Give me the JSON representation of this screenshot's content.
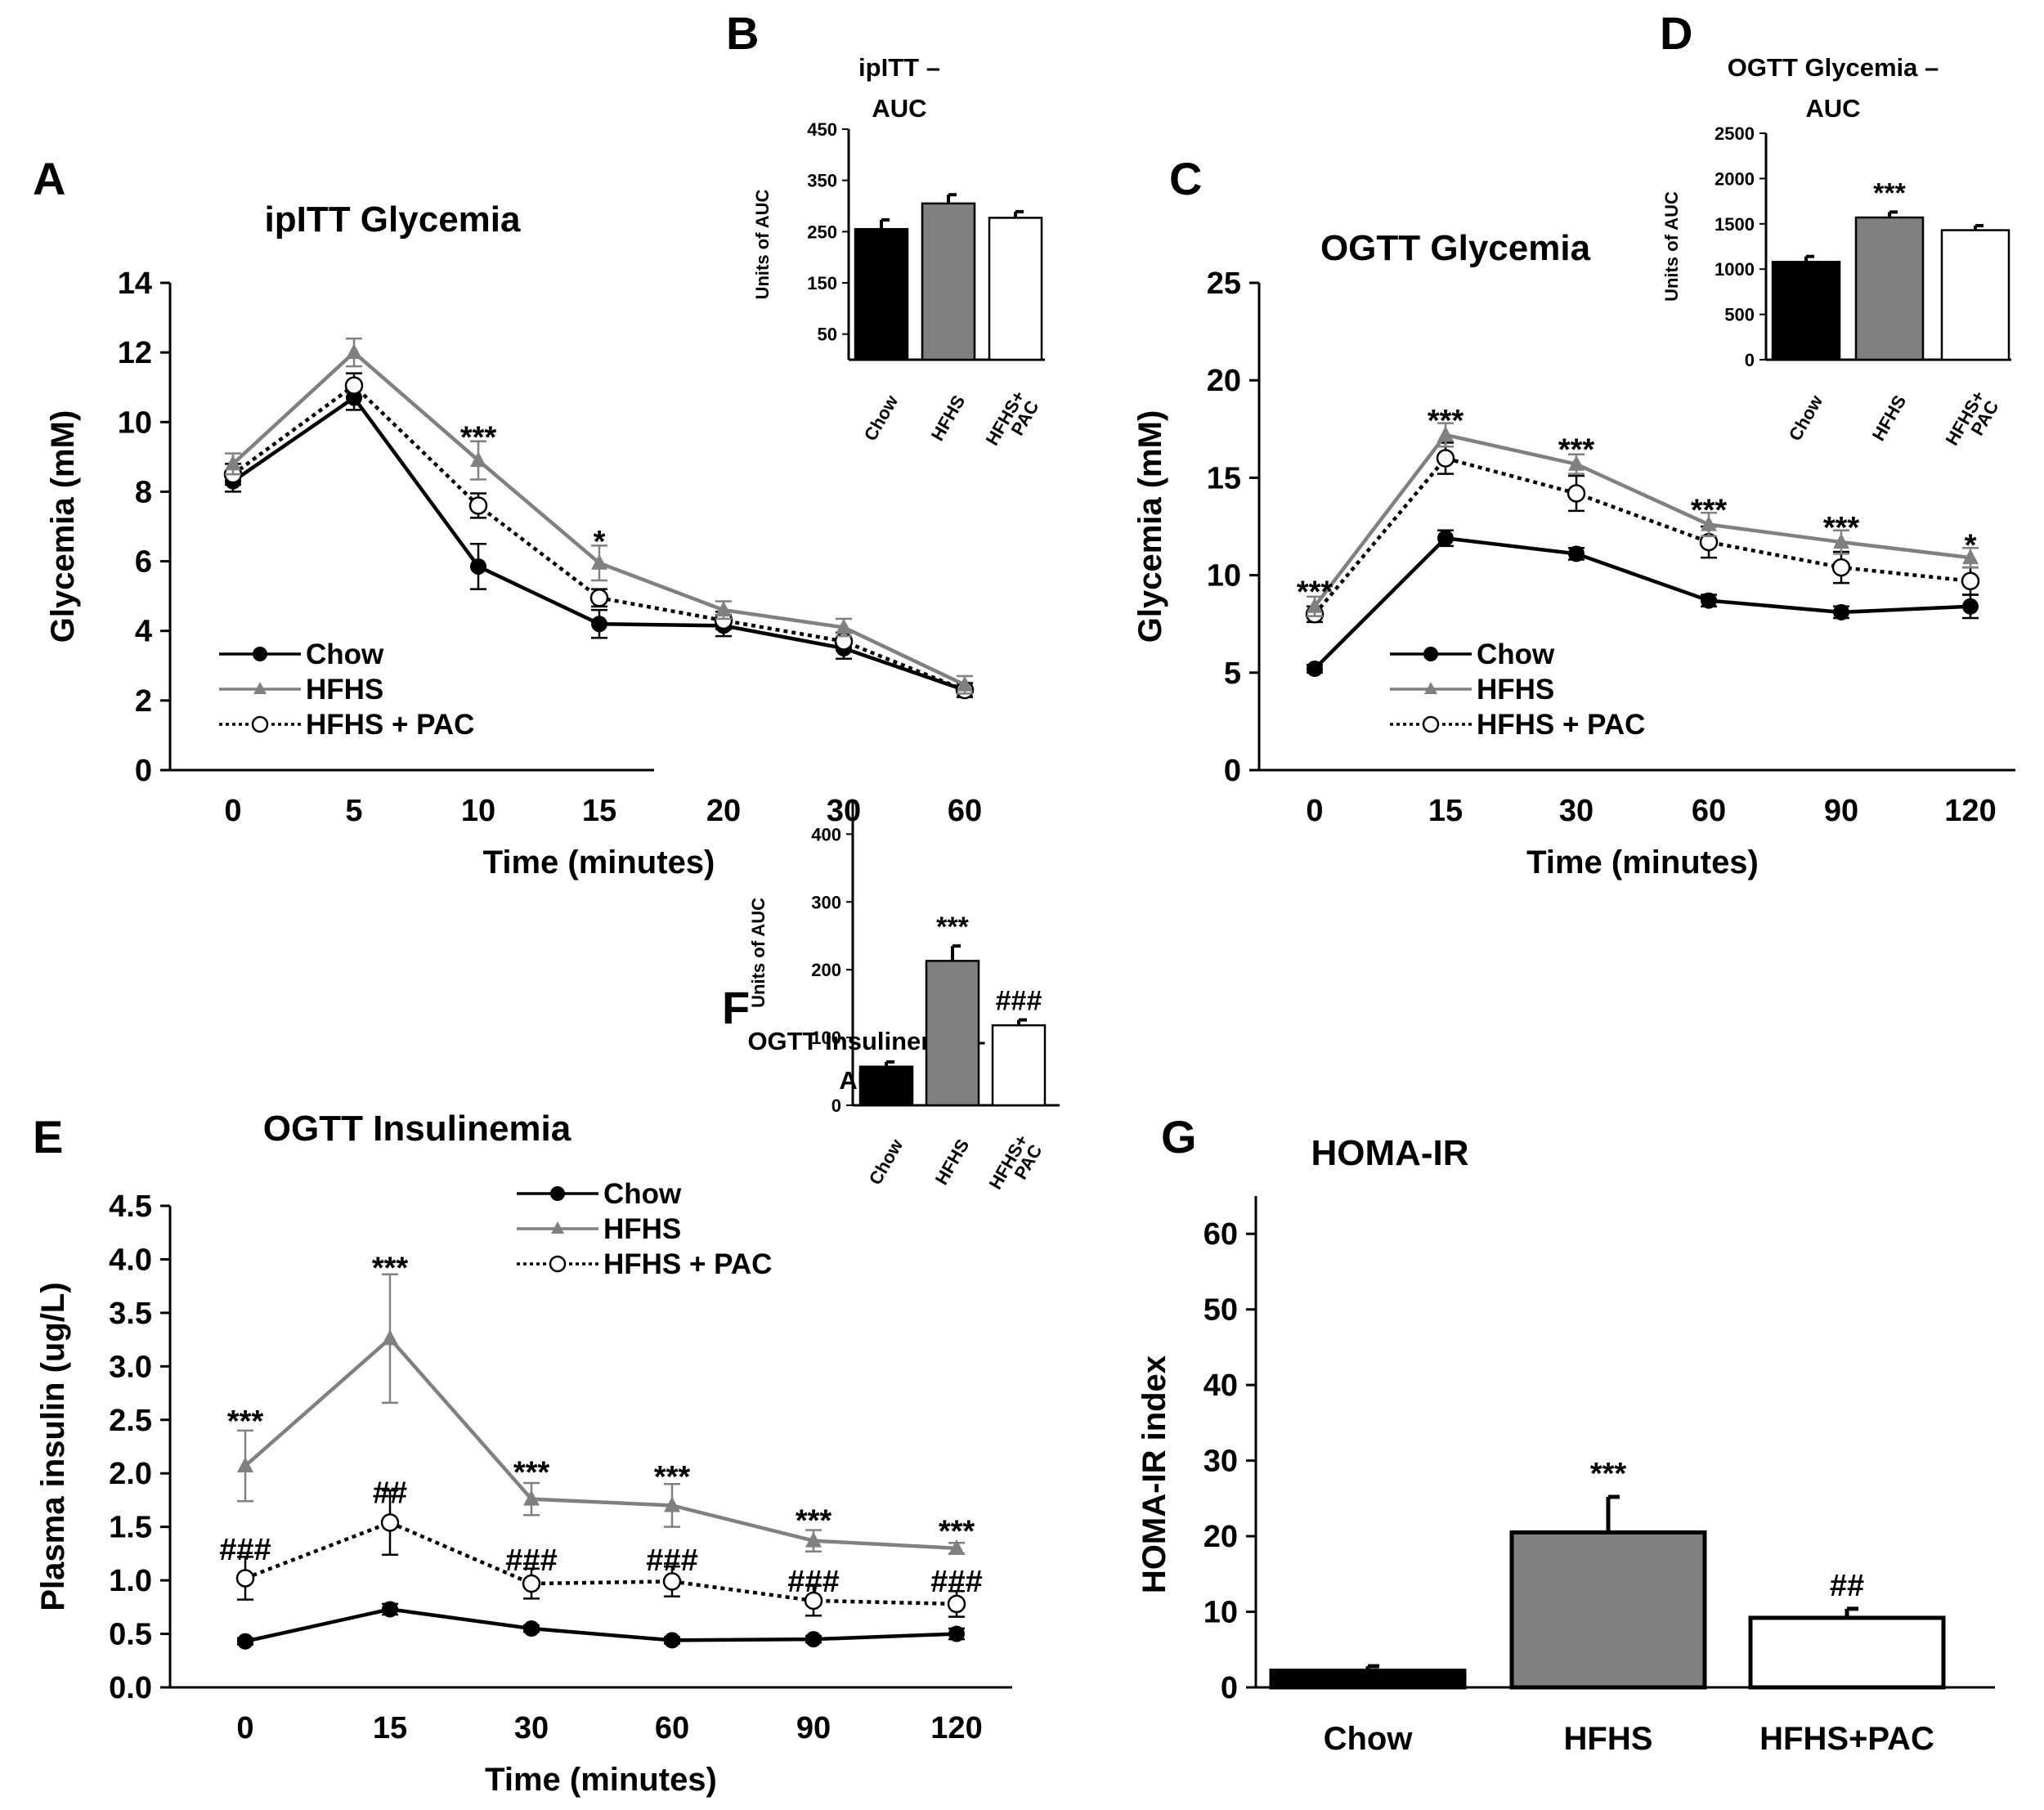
{
  "colors": {
    "chow": "#000000",
    "hfhs": "#808080",
    "pac": "#000000",
    "pac_fill": "#ffffff",
    "axis": "#000000"
  },
  "series_meta": [
    {
      "key": "chow",
      "label": "Chow",
      "marker": "circle-filled",
      "dash": "solid"
    },
    {
      "key": "hfhs",
      "label": "HFHS",
      "marker": "triangle",
      "dash": "solid"
    },
    {
      "key": "pac",
      "label": "HFHS + PAC",
      "marker": "circle-open",
      "dash": "dotted"
    }
  ],
  "chart_data": [
    {
      "id": "A",
      "letter": "A",
      "type": "line",
      "title": "ipITT Glycemia",
      "xlabel": "Time (minutes)",
      "ylabel": "Glycemia (mM)",
      "categories": [
        "0",
        "5",
        "10",
        "15",
        "20",
        "30",
        "60"
      ],
      "ylim": [
        0,
        14
      ],
      "yticks": [
        "0",
        "2",
        "4",
        "6",
        "8",
        "10",
        "12",
        "14"
      ],
      "series": [
        {
          "key": "chow",
          "name": "Chow",
          "values": [
            8.3,
            10.7,
            5.85,
            4.2,
            4.15,
            3.5,
            2.3
          ],
          "errors": [
            0.3,
            0.35,
            0.65,
            0.4,
            0.3,
            0.3,
            0.2
          ]
        },
        {
          "key": "hfhs",
          "name": "HFHS",
          "values": [
            8.8,
            12.0,
            8.9,
            5.95,
            4.6,
            4.1,
            2.45
          ],
          "errors": [
            0.3,
            0.4,
            0.55,
            0.5,
            0.25,
            0.25,
            0.25
          ]
        },
        {
          "key": "pac",
          "name": "HFHS + PAC",
          "values": [
            8.5,
            11.05,
            7.6,
            4.95,
            4.3,
            3.7,
            2.3
          ],
          "errors": [
            0.3,
            0.35,
            0.35,
            0.25,
            0.25,
            0.25,
            0.2
          ]
        }
      ],
      "annotations": [
        {
          "text": "***",
          "category": "10",
          "y": 9.6
        },
        {
          "text": "*",
          "category": "15",
          "y": 6.6
        }
      ],
      "legend": [
        "Chow",
        "HFHS",
        "HFHS + PAC"
      ]
    },
    {
      "id": "B",
      "letter": "B",
      "type": "bar",
      "title": [
        "ipITT –",
        "AUC"
      ],
      "ylabel": "Units of AUC",
      "categories": [
        [
          "Chow"
        ],
        [
          "HFHS"
        ],
        [
          "HFHS+",
          "PAC"
        ]
      ],
      "values": [
        255,
        305,
        277
      ],
      "errors": [
        18,
        17,
        12
      ],
      "ylim": [
        0,
        450
      ],
      "yticks": [
        50,
        150,
        250,
        350,
        450
      ],
      "bar_colors": [
        "#000000",
        "#808080",
        "#ffffff"
      ],
      "annotations": []
    },
    {
      "id": "C",
      "letter": "C",
      "type": "line",
      "title": "OGTT Glycemia",
      "xlabel": "Time (minutes)",
      "ylabel": "Glycemia (mM)",
      "categories": [
        "0",
        "15",
        "30",
        "60",
        "90",
        "120"
      ],
      "ylim": [
        0,
        25
      ],
      "yticks": [
        "0",
        "5",
        "10",
        "15",
        "20",
        "25"
      ],
      "series": [
        {
          "key": "chow",
          "name": "Chow",
          "values": [
            5.2,
            11.9,
            11.1,
            8.7,
            8.1,
            8.4
          ],
          "errors": [
            0.2,
            0.4,
            0.3,
            0.3,
            0.3,
            0.6
          ]
        },
        {
          "key": "hfhs",
          "name": "HFHS",
          "values": [
            8.4,
            17.2,
            15.7,
            12.6,
            11.7,
            10.9
          ],
          "errors": [
            0.5,
            0.6,
            0.5,
            0.6,
            0.6,
            0.5
          ]
        },
        {
          "key": "pac",
          "name": "HFHS + PAC",
          "values": [
            8.0,
            16.0,
            14.2,
            11.7,
            10.4,
            9.7
          ],
          "errors": [
            0.4,
            0.8,
            0.9,
            0.8,
            0.8,
            0.7
          ]
        }
      ],
      "annotations": [
        {
          "text": "***",
          "category": "0",
          "y": 9.2
        },
        {
          "text": "***",
          "category": "15",
          "y": 18.0
        },
        {
          "text": "***",
          "category": "30",
          "y": 16.5
        },
        {
          "text": "***",
          "category": "60",
          "y": 13.4
        },
        {
          "text": "***",
          "category": "90",
          "y": 12.5
        },
        {
          "text": "*",
          "category": "120",
          "y": 11.6
        }
      ],
      "legend": [
        "Chow",
        "HFHS",
        "HFHS + PAC"
      ]
    },
    {
      "id": "D",
      "letter": "D",
      "type": "bar",
      "title": [
        "OGTT Glycemia –",
        "AUC"
      ],
      "ylabel": "Units of AUC",
      "categories": [
        [
          "Chow"
        ],
        [
          "HFHS"
        ],
        [
          "HFHS+",
          "PAC"
        ]
      ],
      "values": [
        1080,
        1570,
        1430
      ],
      "errors": [
        60,
        60,
        50
      ],
      "ylim": [
        0,
        2500
      ],
      "yticks": [
        0,
        500,
        1000,
        1500,
        2000,
        2500
      ],
      "bar_colors": [
        "#000000",
        "#808080",
        "#ffffff"
      ],
      "annotations": [
        {
          "text": "***",
          "index": 1
        }
      ]
    },
    {
      "id": "E",
      "letter": "E",
      "type": "line",
      "title": "OGTT Insulinemia",
      "xlabel": "Time (minutes)",
      "ylabel": "Plasma insulin (ug/L)",
      "categories": [
        "0",
        "15",
        "30",
        "60",
        "90",
        "120"
      ],
      "ylim": [
        0,
        4.5
      ],
      "yticks": [
        "0.0",
        "0.5",
        "1.0",
        "1.5",
        "2.0",
        "2.5",
        "3.0",
        "3.5",
        "4.0",
        "4.5"
      ],
      "series": [
        {
          "key": "chow",
          "name": "Chow",
          "values": [
            0.43,
            0.73,
            0.55,
            0.44,
            0.45,
            0.5
          ],
          "errors": [
            0.03,
            0.05,
            0.03,
            0.03,
            0.03,
            0.05
          ]
        },
        {
          "key": "hfhs",
          "name": "HFHS",
          "values": [
            2.07,
            3.26,
            1.76,
            1.7,
            1.37,
            1.3
          ],
          "errors": [
            0.33,
            0.6,
            0.15,
            0.2,
            0.1,
            0.05
          ]
        },
        {
          "key": "pac",
          "name": "HFHS + PAC",
          "values": [
            1.02,
            1.54,
            0.97,
            0.99,
            0.81,
            0.78
          ],
          "errors": [
            0.2,
            0.3,
            0.14,
            0.14,
            0.14,
            0.12
          ]
        }
      ],
      "annotations": [
        {
          "text": "***",
          "category": "0",
          "y": 2.5
        },
        {
          "text": "###",
          "category": "0",
          "y": 1.3
        },
        {
          "text": "***",
          "category": "15",
          "y": 3.93
        },
        {
          "text": "##",
          "category": "15",
          "y": 1.83
        },
        {
          "text": "***",
          "category": "30",
          "y": 2.02
        },
        {
          "text": "###",
          "category": "30",
          "y": 1.2
        },
        {
          "text": "***",
          "category": "60",
          "y": 1.98
        },
        {
          "text": "###",
          "category": "60",
          "y": 1.2
        },
        {
          "text": "***",
          "category": "90",
          "y": 1.57
        },
        {
          "text": "###",
          "category": "90",
          "y": 1.0
        },
        {
          "text": "***",
          "category": "120",
          "y": 1.47
        },
        {
          "text": "###",
          "category": "120",
          "y": 1.0
        }
      ],
      "legend": [
        "Chow",
        "HFHS",
        "HFHS + PAC"
      ]
    },
    {
      "id": "F",
      "letter": "F",
      "type": "bar",
      "title": [
        "OGTT Insulinemia –",
        "AUC"
      ],
      "ylabel": "Units of AUC",
      "categories": [
        [
          "Chow"
        ],
        [
          "HFHS"
        ],
        [
          "HFHS+",
          "PAC"
        ]
      ],
      "values": [
        57,
        213,
        118
      ],
      "errors": [
        7,
        22,
        8
      ],
      "ylim": [
        0,
        450
      ],
      "yticks": [
        0,
        100,
        200,
        300,
        400
      ],
      "bar_colors": [
        "#000000",
        "#808080",
        "#ffffff"
      ],
      "annotations": [
        {
          "text": "***",
          "index": 1
        },
        {
          "text": "###",
          "index": 2
        }
      ]
    },
    {
      "id": "G",
      "letter": "G",
      "type": "bar",
      "title": "HOMA-IR",
      "ylabel": "HOMA-IR index",
      "categories": [
        "Chow",
        "HFHS",
        "HFHS+PAC"
      ],
      "values": [
        2.2,
        20.5,
        9.2
      ],
      "errors": [
        0.6,
        4.7,
        1.2
      ],
      "ylim": [
        0,
        65
      ],
      "yticks": [
        0,
        10,
        20,
        30,
        40,
        50,
        60
      ],
      "bar_colors": [
        "#000000",
        "#808080",
        "#ffffff"
      ],
      "annotations": [
        {
          "text": "***",
          "index": 1
        },
        {
          "text": "##",
          "index": 2
        }
      ]
    }
  ]
}
